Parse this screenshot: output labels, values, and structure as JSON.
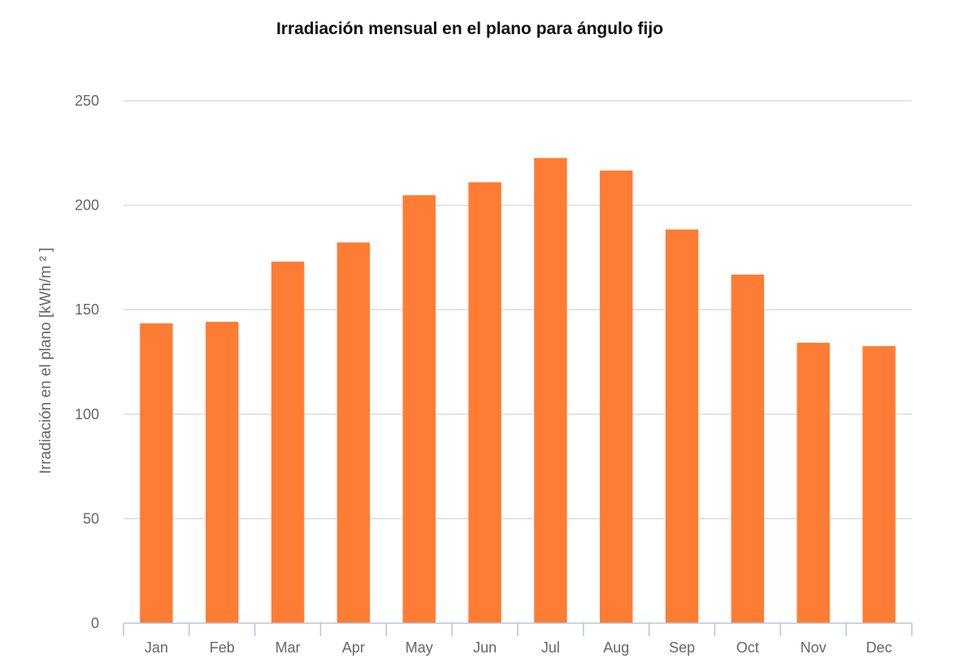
{
  "chart_data": {
    "type": "bar",
    "title": "Irradiación mensual en el plano para ángulo fijo",
    "ylabel": "Irradiación en el plano [kWh/m ² ]",
    "xlabel": "",
    "categories": [
      "Jan",
      "Feb",
      "Mar",
      "Apr",
      "May",
      "Jun",
      "Jul",
      "Aug",
      "Sep",
      "Oct",
      "Nov",
      "Dec"
    ],
    "values": [
      143.5,
      144.2,
      173.0,
      182.2,
      204.8,
      211.0,
      222.6,
      216.6,
      188.4,
      166.8,
      134.2,
      132.6
    ],
    "ylim": [
      0,
      250
    ],
    "yticks": [
      0,
      50,
      100,
      150,
      200,
      250
    ],
    "grid": true,
    "legend": "none",
    "colors": {
      "bar": "#fe7c33"
    }
  }
}
